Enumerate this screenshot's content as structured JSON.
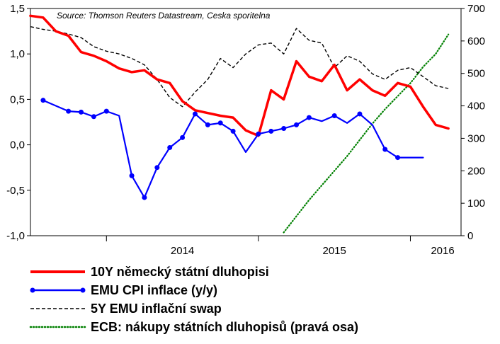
{
  "chart_data": {
    "type": "line",
    "source": "Source: Thomson Reuters Datastream, Ceska sporitelna",
    "x_axis": {
      "ticks": [
        "2014",
        "2015",
        "2016"
      ],
      "range": [
        "2013-07",
        "2016-05"
      ]
    },
    "y_left": {
      "ticks": [
        "1,5",
        "1,0",
        "0,5",
        "0,0",
        "-0,5",
        "-1,0"
      ],
      "range": [
        -1.0,
        1.5
      ]
    },
    "y_right": {
      "ticks": [
        "700",
        "600",
        "500",
        "400",
        "300",
        "200",
        "100",
        "0"
      ],
      "range": [
        0,
        700
      ]
    },
    "grid": false,
    "legend_position": "bottom",
    "series": [
      {
        "name": "10Y německý státní dluhopisi",
        "axis": "left",
        "color": "#ff0000",
        "style": "solid-thick",
        "x": [
          "2013-07",
          "2013-08",
          "2013-09",
          "2013-10",
          "2013-11",
          "2013-12",
          "2014-01",
          "2014-02",
          "2014-03",
          "2014-04",
          "2014-05",
          "2014-06",
          "2014-07",
          "2014-08",
          "2014-09",
          "2014-10",
          "2014-11",
          "2014-12",
          "2015-01",
          "2015-02",
          "2015-03",
          "2015-04",
          "2015-05",
          "2015-06",
          "2015-07",
          "2015-08",
          "2015-09",
          "2015-10",
          "2015-11",
          "2015-12",
          "2016-01",
          "2016-02",
          "2016-03",
          "2016-04"
        ],
        "values": [
          1.42,
          1.4,
          1.25,
          1.2,
          1.02,
          0.98,
          0.92,
          0.84,
          0.8,
          0.82,
          0.72,
          0.68,
          0.48,
          0.38,
          0.35,
          0.32,
          0.3,
          0.16,
          0.1,
          0.6,
          0.5,
          0.92,
          0.75,
          0.7,
          0.88,
          0.6,
          0.72,
          0.6,
          0.54,
          0.68,
          0.64,
          0.42,
          0.22,
          0.18
        ]
      },
      {
        "name": "EMU CPI inflace (y/y)",
        "axis": "left",
        "color": "#0000ff",
        "style": "solid-markers",
        "x": [
          "2013-08",
          "2013-10",
          "2013-11",
          "2013-12",
          "2014-01",
          "2014-02",
          "2014-03",
          "2014-04",
          "2014-05",
          "2014-06",
          "2014-07",
          "2014-08",
          "2014-09",
          "2014-10",
          "2014-11",
          "2014-12",
          "2015-01",
          "2015-02",
          "2015-03",
          "2015-04",
          "2015-05",
          "2015-06",
          "2015-07",
          "2015-08",
          "2015-09",
          "2015-10",
          "2015-11",
          "2015-12",
          "2016-01",
          "2016-02"
        ],
        "values": [
          0.49,
          0.37,
          0.36,
          0.31,
          0.37,
          0.32,
          -0.34,
          -0.58,
          -0.25,
          -0.03,
          0.08,
          0.34,
          0.22,
          0.24,
          0.15,
          -0.08,
          0.12,
          0.15,
          0.18,
          0.22,
          0.3,
          0.26,
          0.32,
          0.24,
          0.34,
          0.22,
          -0.05,
          -0.14,
          -0.14,
          -0.14
        ]
      },
      {
        "name": "5Y EMU inflační swap",
        "axis": "left",
        "color": "#000000",
        "style": "dashed",
        "x": [
          "2013-07",
          "2013-08",
          "2013-09",
          "2013-10",
          "2013-11",
          "2013-12",
          "2014-01",
          "2014-02",
          "2014-03",
          "2014-04",
          "2014-05",
          "2014-06",
          "2014-07",
          "2014-08",
          "2014-09",
          "2014-10",
          "2014-11",
          "2014-12",
          "2015-01",
          "2015-02",
          "2015-03",
          "2015-04",
          "2015-05",
          "2015-06",
          "2015-07",
          "2015-08",
          "2015-09",
          "2015-10",
          "2015-11",
          "2015-12",
          "2016-01",
          "2016-02",
          "2016-03",
          "2016-04"
        ],
        "values": [
          1.3,
          1.27,
          1.25,
          1.22,
          1.18,
          1.08,
          1.03,
          1.0,
          0.95,
          0.88,
          0.72,
          0.52,
          0.42,
          0.58,
          0.72,
          0.95,
          0.85,
          1.0,
          1.1,
          1.12,
          1.0,
          1.28,
          1.15,
          1.12,
          0.85,
          0.98,
          0.92,
          0.78,
          0.72,
          0.82,
          0.85,
          0.75,
          0.65,
          0.62
        ]
      },
      {
        "name": "ECB: nákupy státních dluhopisů (pravá osa)",
        "axis": "right",
        "color": "#008000",
        "style": "dotted",
        "x": [
          "2015-03",
          "2015-04",
          "2015-05",
          "2015-06",
          "2015-07",
          "2015-08",
          "2015-09",
          "2015-10",
          "2015-11",
          "2015-12",
          "2016-01",
          "2016-02",
          "2016-03",
          "2016-04"
        ],
        "values": [
          10,
          60,
          110,
          155,
          200,
          245,
          295,
          345,
          390,
          430,
          470,
          520,
          560,
          620
        ]
      }
    ]
  },
  "legend": [
    {
      "label": "10Y německý státní dluhopisi",
      "color": "#ff0000",
      "style": "solid-thick"
    },
    {
      "label": "EMU CPI inflace (y/y)",
      "color": "#0000ff",
      "style": "solid-markers"
    },
    {
      "label": "5Y EMU inflační swap",
      "color": "#000000",
      "style": "dashed"
    },
    {
      "label": "ECB: nákupy státních dluhopisů (pravá osa)",
      "color": "#008000",
      "style": "dotted"
    }
  ]
}
